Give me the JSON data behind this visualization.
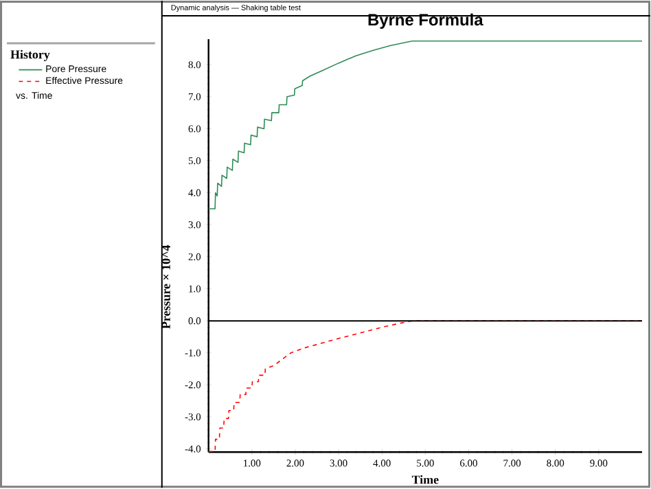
{
  "chart_data": {
    "type": "line",
    "title": "Byrne Formula",
    "subtitle": "Dynamic analysis — Shaking table test",
    "xlabel": "Time",
    "ylabel": "Pressure × 10^4",
    "legend_title": "History",
    "annotations": [
      "vs. Time"
    ],
    "legend": "left",
    "xlim": [
      0,
      10
    ],
    "ylim": [
      -4.1,
      8.8
    ],
    "xticks": [
      {
        "value": 1,
        "label": "1.00"
      },
      {
        "value": 2,
        "label": "2.00"
      },
      {
        "value": 3,
        "label": "3.00"
      },
      {
        "value": 4,
        "label": "4.00"
      },
      {
        "value": 5,
        "label": "5.00"
      },
      {
        "value": 6,
        "label": "6.00"
      },
      {
        "value": 7,
        "label": "7.00"
      },
      {
        "value": 8,
        "label": "8.00"
      },
      {
        "value": 9,
        "label": "9.00"
      }
    ],
    "yticks": [
      {
        "value": -4,
        "label": "-4.0"
      },
      {
        "value": -3,
        "label": "-3.0"
      },
      {
        "value": -2,
        "label": "-2.0"
      },
      {
        "value": -1,
        "label": "-1.0"
      },
      {
        "value": 0,
        "label": "0.0"
      },
      {
        "value": 1,
        "label": "1.0"
      },
      {
        "value": 2,
        "label": "2.0"
      },
      {
        "value": 3,
        "label": "3.0"
      },
      {
        "value": 4,
        "label": "4.0"
      },
      {
        "value": 5,
        "label": "5.0"
      },
      {
        "value": 6,
        "label": "6.0"
      },
      {
        "value": 7,
        "label": "7.0"
      },
      {
        "value": 8,
        "label": "8.0"
      }
    ],
    "ref_lines": [
      {
        "axis": "y",
        "value": 0,
        "color": "#000000"
      }
    ],
    "series": [
      {
        "name": "Pore Pressure",
        "color": "#2e8b57",
        "line_style": "solid",
        "x": [
          0,
          0.15,
          0.16,
          0.2,
          0.21,
          0.3,
          0.31,
          0.42,
          0.43,
          0.55,
          0.56,
          0.68,
          0.69,
          0.82,
          0.83,
          0.97,
          0.98,
          1.12,
          1.13,
          1.28,
          1.29,
          1.45,
          1.46,
          1.62,
          1.63,
          1.8,
          1.81,
          1.98,
          1.99,
          2.16,
          2.17,
          2.35,
          2.6,
          3.0,
          3.4,
          3.8,
          4.2,
          4.7,
          10
        ],
        "values": [
          3.5,
          3.5,
          4.0,
          3.9,
          4.3,
          4.2,
          4.55,
          4.45,
          4.8,
          4.7,
          5.05,
          4.95,
          5.3,
          5.25,
          5.55,
          5.5,
          5.8,
          5.75,
          6.05,
          6.0,
          6.3,
          6.25,
          6.5,
          6.5,
          6.75,
          6.75,
          7.0,
          7.05,
          7.25,
          7.35,
          7.5,
          7.65,
          7.8,
          8.05,
          8.28,
          8.45,
          8.6,
          8.74,
          8.74
        ]
      },
      {
        "name": "Effective Pressure",
        "color": "#ff0000",
        "line_style": "dashed",
        "x": [
          0,
          0.15,
          0.16,
          0.25,
          0.26,
          0.35,
          0.36,
          0.46,
          0.47,
          0.58,
          0.59,
          0.72,
          0.73,
          0.86,
          0.87,
          1.0,
          1.01,
          1.15,
          1.16,
          1.3,
          1.31,
          1.5,
          1.7,
          1.9,
          2.2,
          2.6,
          3.0,
          3.5,
          4.0,
          4.4,
          4.7,
          10
        ],
        "values": [
          -4.08,
          -4.08,
          -3.7,
          -3.7,
          -3.35,
          -3.35,
          -3.05,
          -3.05,
          -2.8,
          -2.8,
          -2.55,
          -2.55,
          -2.3,
          -2.3,
          -2.1,
          -2.1,
          -1.9,
          -1.9,
          -1.7,
          -1.7,
          -1.5,
          -1.4,
          -1.2,
          -1.0,
          -0.85,
          -0.7,
          -0.55,
          -0.38,
          -0.2,
          -0.08,
          0,
          0
        ]
      }
    ]
  }
}
